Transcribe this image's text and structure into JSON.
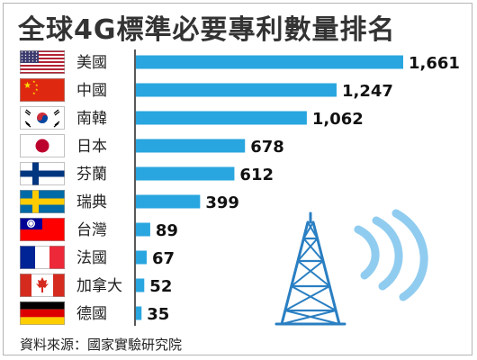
{
  "title": "全球4G標準必要專利數量排名",
  "source": "資料來源：國家實驗研究院",
  "colors": {
    "bar": "#29a6df",
    "axis": "#222222",
    "tower": "#2a7fc2",
    "signal": "#7dc3ec"
  },
  "rows": [
    {
      "flag_icon": "usa-flag-icon",
      "label": "美國",
      "value": 1661,
      "display": "1,661"
    },
    {
      "flag_icon": "china-flag-icon",
      "label": "中國",
      "value": 1247,
      "display": "1,247"
    },
    {
      "flag_icon": "south-korea-flag-icon",
      "label": "南韓",
      "value": 1062,
      "display": "1,062"
    },
    {
      "flag_icon": "japan-flag-icon",
      "label": "日本",
      "value": 678,
      "display": "678"
    },
    {
      "flag_icon": "finland-flag-icon",
      "label": "芬蘭",
      "value": 612,
      "display": "612"
    },
    {
      "flag_icon": "sweden-flag-icon",
      "label": "瑞典",
      "value": 399,
      "display": "399"
    },
    {
      "flag_icon": "taiwan-flag-icon",
      "label": "台灣",
      "value": 89,
      "display": "89"
    },
    {
      "flag_icon": "france-flag-icon",
      "label": "法國",
      "value": 67,
      "display": "67"
    },
    {
      "flag_icon": "canada-flag-icon",
      "label": "加拿大",
      "value": 52,
      "display": "52"
    },
    {
      "flag_icon": "germany-flag-icon",
      "label": "德國",
      "value": 35,
      "display": "35"
    }
  ],
  "chart_data": {
    "type": "bar",
    "orientation": "horizontal",
    "title": "全球4G標準必要專利數量排名",
    "categories": [
      "美國",
      "中國",
      "南韓",
      "日本",
      "芬蘭",
      "瑞典",
      "台灣",
      "法國",
      "加拿大",
      "德國"
    ],
    "values": [
      1661,
      1247,
      1062,
      678,
      612,
      399,
      89,
      67,
      52,
      35
    ],
    "data_labels": [
      "1,661",
      "1,247",
      "1,062",
      "678",
      "612",
      "399",
      "89",
      "67",
      "52",
      "35"
    ],
    "xlim": [
      0,
      1661
    ],
    "grid": false,
    "legend": "none"
  }
}
